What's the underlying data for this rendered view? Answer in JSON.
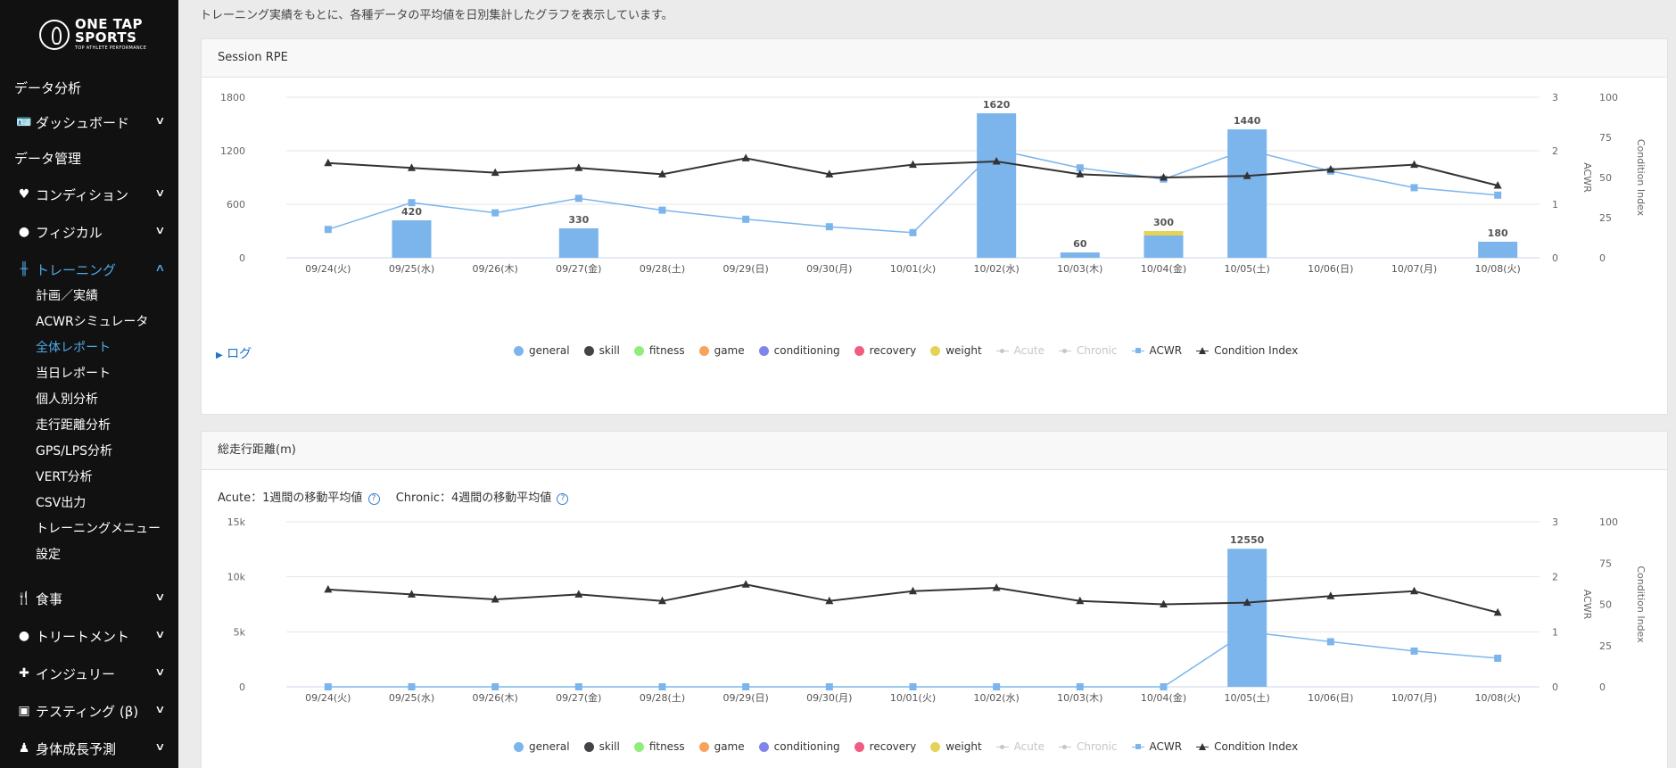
{
  "sidebar": {
    "logo": {
      "line1": "ONE TAP",
      "line2": "SPORTS",
      "line3": "TOP ATHLETE PERFORMANCE"
    },
    "items": [
      {
        "label": "データ分析"
      },
      {
        "label": "ダッシュボード",
        "icon": "id-card-icon"
      },
      {
        "label": "データ管理"
      },
      {
        "label": "コンディション",
        "icon": "heart-pulse-icon"
      },
      {
        "label": "フィジカル",
        "icon": "user-circle-icon"
      },
      {
        "label": "トレーニング",
        "icon": "dumbbell-icon",
        "active": true
      },
      {
        "label": "食事",
        "icon": "utensils-icon"
      },
      {
        "label": "トリートメント",
        "icon": "user-medical-icon"
      },
      {
        "label": "インジュリー",
        "icon": "first-aid-kit-icon"
      },
      {
        "label": "テスティング (β)",
        "icon": "chalkboard-teacher-icon"
      },
      {
        "label": "身体成長予測",
        "icon": "child-growth-icon"
      }
    ],
    "training_submenu": [
      {
        "label": "計画／実績"
      },
      {
        "label": "ACWRシミュレータ"
      },
      {
        "label": "全体レポート",
        "active": true
      },
      {
        "label": "当日レポート"
      },
      {
        "label": "個人別分析"
      },
      {
        "label": "走行距離分析"
      },
      {
        "label": "GPS/LPS分析"
      },
      {
        "label": "VERT分析"
      },
      {
        "label": "CSV出力"
      },
      {
        "label": "トレーニングメニュー"
      },
      {
        "label": "設定"
      }
    ]
  },
  "main": {
    "intro_text": "トレーニング実績をもとに、各種データの平均値を日別集計したグラフを表示しています。",
    "log_link": "ログ",
    "acute_note": "Acute：1週間の移動平均値",
    "chronic_note": "Chronic：4週間の移動平均値",
    "help_icon": "?"
  },
  "colors": {
    "accent": "#4ea9e6",
    "bar": "#7cb5ec",
    "line": "#333333",
    "weight": "#e4d354"
  },
  "legend": [
    {
      "label": "general",
      "color": "#7cb5ec",
      "kind": "dot"
    },
    {
      "label": "skill",
      "color": "#434348",
      "kind": "dot"
    },
    {
      "label": "fitness",
      "color": "#90ed7d",
      "kind": "dot"
    },
    {
      "label": "game",
      "color": "#f7a35c",
      "kind": "dot"
    },
    {
      "label": "conditioning",
      "color": "#8085e9",
      "kind": "dot"
    },
    {
      "label": "recovery",
      "color": "#f15c80",
      "kind": "dot"
    },
    {
      "label": "weight",
      "color": "#e4d354",
      "kind": "dot"
    },
    {
      "label": "Acute",
      "color": "#c6c6c6",
      "kind": "line-dot",
      "hidden": true
    },
    {
      "label": "Chronic",
      "color": "#c6c6c6",
      "kind": "line-dot",
      "hidden": true
    },
    {
      "label": "ACWR",
      "color": "#7cb5ec",
      "kind": "line-square"
    },
    {
      "label": "Condition Index",
      "color": "#333333",
      "kind": "line-triangle"
    }
  ],
  "chart_data": [
    {
      "type": "bar",
      "title": "Session RPE",
      "categories": [
        "09/24(火)",
        "09/25(水)",
        "09/26(木)",
        "09/27(金)",
        "09/28(土)",
        "09/29(日)",
        "09/30(月)",
        "10/01(火)",
        "10/02(水)",
        "10/03(木)",
        "10/04(金)",
        "10/05(土)",
        "10/06(日)",
        "10/07(月)",
        "10/08(火)"
      ],
      "yticks": [
        "0",
        "600",
        "1200",
        "1800"
      ],
      "ylim": [
        0,
        1800
      ],
      "acwr_ticks": [
        "0",
        "1",
        "2",
        "3"
      ],
      "acwr_lim": [
        0,
        3
      ],
      "acwr_label": "ACWR",
      "ci_ticks": [
        "0",
        "25",
        "50",
        "75",
        "100"
      ],
      "ci_lim": [
        0,
        100
      ],
      "ci_label": "Condition Index",
      "totals": [
        null,
        420,
        null,
        330,
        null,
        null,
        null,
        null,
        1620,
        60,
        300,
        1440,
        null,
        null,
        180
      ],
      "total_labels": [
        "",
        "420",
        "",
        "330",
        "",
        "",
        "",
        "",
        "1620",
        "60",
        "300",
        "1440",
        "",
        "",
        "180"
      ],
      "series": [
        {
          "name": "general",
          "values": [
            0,
            420,
            0,
            330,
            0,
            0,
            0,
            0,
            1620,
            60,
            250,
            1440,
            0,
            0,
            180
          ]
        },
        {
          "name": "weight",
          "values": [
            0,
            0,
            0,
            0,
            0,
            0,
            0,
            0,
            0,
            0,
            50,
            0,
            0,
            0,
            0
          ]
        },
        {
          "name": "ACWR",
          "values": [
            0.53,
            1.03,
            0.84,
            1.11,
            0.89,
            0.72,
            0.58,
            0.47,
            2.02,
            1.68,
            1.47,
            2.02,
            1.62,
            1.31,
            1.17
          ]
        },
        {
          "name": "Condition Index",
          "values": [
            59,
            56,
            53,
            56,
            52,
            62,
            52,
            58,
            60,
            52,
            50,
            51,
            55,
            58,
            45
          ]
        }
      ]
    },
    {
      "type": "bar",
      "title": "総走行距離(m)",
      "categories": [
        "09/24(火)",
        "09/25(水)",
        "09/26(木)",
        "09/27(金)",
        "09/28(土)",
        "09/29(日)",
        "09/30(月)",
        "10/01(火)",
        "10/02(水)",
        "10/03(木)",
        "10/04(金)",
        "10/05(土)",
        "10/06(日)",
        "10/07(月)",
        "10/08(火)"
      ],
      "yticks": [
        "0",
        "5k",
        "10k",
        "15k"
      ],
      "ylim": [
        0,
        15000
      ],
      "acwr_ticks": [
        "0",
        "1",
        "2",
        "3"
      ],
      "acwr_lim": [
        0,
        3
      ],
      "acwr_label": "ACWR",
      "ci_ticks": [
        "0",
        "25",
        "50",
        "75",
        "100"
      ],
      "ci_lim": [
        0,
        100
      ],
      "ci_label": "Condition Index",
      "totals": [
        null,
        null,
        null,
        null,
        null,
        null,
        null,
        null,
        null,
        null,
        null,
        12550,
        null,
        null,
        null
      ],
      "total_labels": [
        "",
        "",
        "",
        "",
        "",
        "",
        "",
        "",
        "",
        "",
        "",
        "12550",
        "",
        "",
        ""
      ],
      "series": [
        {
          "name": "general",
          "values": [
            0,
            0,
            0,
            0,
            0,
            0,
            0,
            0,
            0,
            0,
            0,
            12550,
            0,
            0,
            0
          ]
        },
        {
          "name": "ACWR",
          "values": [
            0,
            0,
            0,
            0,
            0,
            0,
            0,
            0,
            0,
            0,
            0,
            1.0,
            0.82,
            0.65,
            0.52
          ]
        },
        {
          "name": "Condition Index",
          "values": [
            59,
            56,
            53,
            56,
            52,
            62,
            52,
            58,
            60,
            52,
            50,
            51,
            55,
            58,
            45
          ]
        }
      ]
    }
  ]
}
